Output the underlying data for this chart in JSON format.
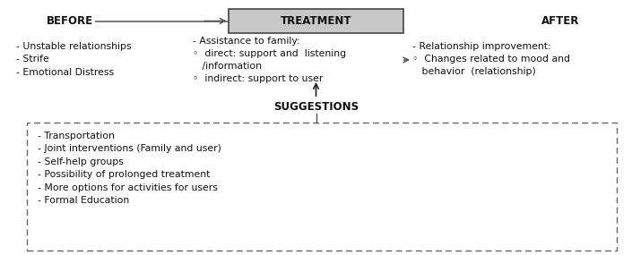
{
  "before_title": "BEFORE",
  "before_items": [
    "- Unstable relationships",
    "- Strife",
    "- Emotional Distress"
  ],
  "treatment_title": "TREATMENT",
  "treatment_line1": "- Assistance to family:",
  "treatment_line2": "◦  direct: support and  listening",
  "treatment_line3": "   /information",
  "treatment_line4": "◦  indirect: support to user",
  "after_title": "AFTER",
  "after_line1": "- Relationship improvement:",
  "after_line2": "◦  Changes related to mood and",
  "after_line3": "   behavior  (relationship)",
  "suggestions_title": "SUGGESTIONS",
  "suggestions_items": [
    "- Transportation",
    "- Joint interventions (Family and user)",
    "- Self-help groups",
    "- Possibility of prolonged treatment",
    "- More options for activities for users",
    "- Formal Education"
  ],
  "bg_color": "#ffffff",
  "text_color": "#111111",
  "treat_box_fill": "#c8c8c8",
  "treat_box_edge": "#444444",
  "arrow_color": "#555555",
  "dash_color": "#666666",
  "font_size": 7.8,
  "title_font_size": 8.5
}
